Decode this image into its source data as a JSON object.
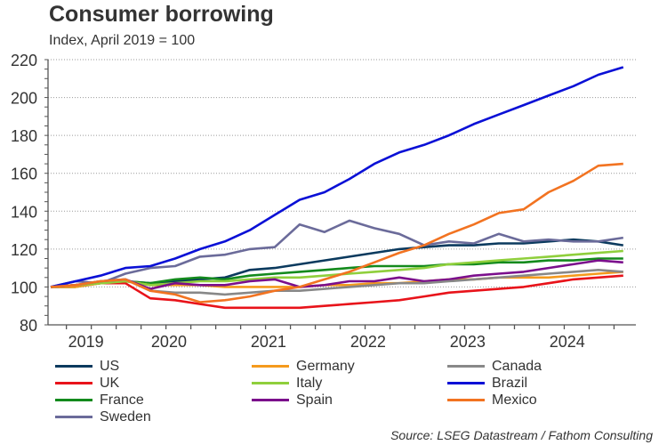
{
  "header": {
    "title": "Consumer borrowing",
    "subtitle": "Index, April 2019 = 100"
  },
  "source": "Source: LSEG Datastream / Fathom Consulting",
  "chart_data": {
    "type": "line",
    "title": "Consumer borrowing",
    "subtitle": "Index, April 2019 = 100",
    "xlabel": "",
    "ylabel": "",
    "ylim": [
      80,
      220
    ],
    "yticks": [
      80,
      100,
      120,
      140,
      160,
      180,
      200,
      220
    ],
    "grid": "horizontal dotted",
    "legend_position": "bottom",
    "x_unit": "months since April 2019",
    "x": [
      0,
      3,
      6,
      9,
      12,
      15,
      18,
      21,
      24,
      27,
      30,
      33,
      36,
      39,
      42,
      45,
      48,
      51,
      54,
      57,
      60,
      63,
      66,
      69
    ],
    "x_ticks": [
      {
        "label": "2019",
        "month": 5
      },
      {
        "label": "2020",
        "month": 15
      },
      {
        "label": "2021",
        "month": 27
      },
      {
        "label": "2022",
        "month": 39
      },
      {
        "label": "2023",
        "month": 51
      },
      {
        "label": "2024",
        "month": 63
      }
    ],
    "series": [
      {
        "name": "US",
        "color": "#0b3a5e",
        "values": [
          100,
          101,
          102,
          103,
          102,
          103,
          104,
          105,
          109,
          110,
          112,
          114,
          116,
          118,
          120,
          121,
          122,
          122,
          123,
          123,
          124,
          125,
          124,
          122
        ]
      },
      {
        "name": "UK",
        "color": "#e8131a",
        "values": [
          100,
          101,
          102,
          102,
          94,
          93,
          91,
          89,
          89,
          89,
          89,
          90,
          91,
          92,
          93,
          95,
          97,
          98,
          99,
          100,
          102,
          104,
          105,
          106
        ]
      },
      {
        "name": "France",
        "color": "#138a1d",
        "values": [
          100,
          100,
          102,
          103,
          102,
          104,
          105,
          104,
          106,
          107,
          108,
          109,
          110,
          111,
          111,
          111,
          112,
          112,
          113,
          113,
          114,
          114,
          115,
          115
        ]
      },
      {
        "name": "Sweden",
        "color": "#6b6b9a",
        "values": [
          100,
          103,
          102,
          107,
          110,
          111,
          116,
          117,
          120,
          121,
          133,
          129,
          135,
          131,
          128,
          122,
          124,
          123,
          128,
          124,
          125,
          124,
          124,
          126
        ]
      },
      {
        "name": "Germany",
        "color": "#f59a1d",
        "values": [
          100,
          100,
          102,
          103,
          101,
          101,
          101,
          100,
          100,
          100,
          100,
          101,
          101,
          102,
          102,
          103,
          104,
          104,
          105,
          105,
          105,
          106,
          107,
          108
        ]
      },
      {
        "name": "Italy",
        "color": "#8fcf3c",
        "values": [
          100,
          101,
          102,
          103,
          101,
          102,
          103,
          103,
          104,
          105,
          105,
          106,
          107,
          108,
          109,
          110,
          112,
          113,
          114,
          115,
          116,
          117,
          118,
          119
        ]
      },
      {
        "name": "Spain",
        "color": "#7b0f8c",
        "values": [
          100,
          101,
          103,
          104,
          99,
          102,
          101,
          101,
          103,
          104,
          100,
          101,
          103,
          103,
          105,
          103,
          104,
          106,
          107,
          108,
          110,
          112,
          114,
          113
        ]
      },
      {
        "name": "Canada",
        "color": "#888888",
        "values": [
          100,
          101,
          103,
          104,
          98,
          97,
          97,
          96,
          97,
          98,
          98,
          99,
          100,
          101,
          102,
          102,
          103,
          104,
          105,
          106,
          107,
          108,
          109,
          108
        ]
      },
      {
        "name": "Brazil",
        "color": "#0a10d6",
        "values": [
          100,
          103,
          106,
          110,
          111,
          115,
          120,
          124,
          130,
          138,
          146,
          150,
          157,
          165,
          171,
          175,
          180,
          186,
          191,
          196,
          201,
          206,
          212,
          216
        ]
      },
      {
        "name": "Mexico",
        "color": "#f27321",
        "values": [
          100,
          101,
          103,
          104,
          98,
          96,
          92,
          93,
          95,
          98,
          100,
          104,
          108,
          113,
          118,
          122,
          128,
          133,
          139,
          141,
          150,
          156,
          164,
          165
        ]
      }
    ]
  },
  "legend": [
    {
      "label": "US",
      "color": "#0b3a5e"
    },
    {
      "label": "UK",
      "color": "#e8131a"
    },
    {
      "label": "France",
      "color": "#138a1d"
    },
    {
      "label": "Sweden",
      "color": "#6b6b9a"
    },
    {
      "label": "Germany",
      "color": "#f59a1d"
    },
    {
      "label": "Italy",
      "color": "#8fcf3c"
    },
    {
      "label": "Spain",
      "color": "#7b0f8c"
    },
    {
      "label": "Canada",
      "color": "#888888"
    },
    {
      "label": "Brazil",
      "color": "#0a10d6"
    },
    {
      "label": "Mexico",
      "color": "#f27321"
    }
  ]
}
